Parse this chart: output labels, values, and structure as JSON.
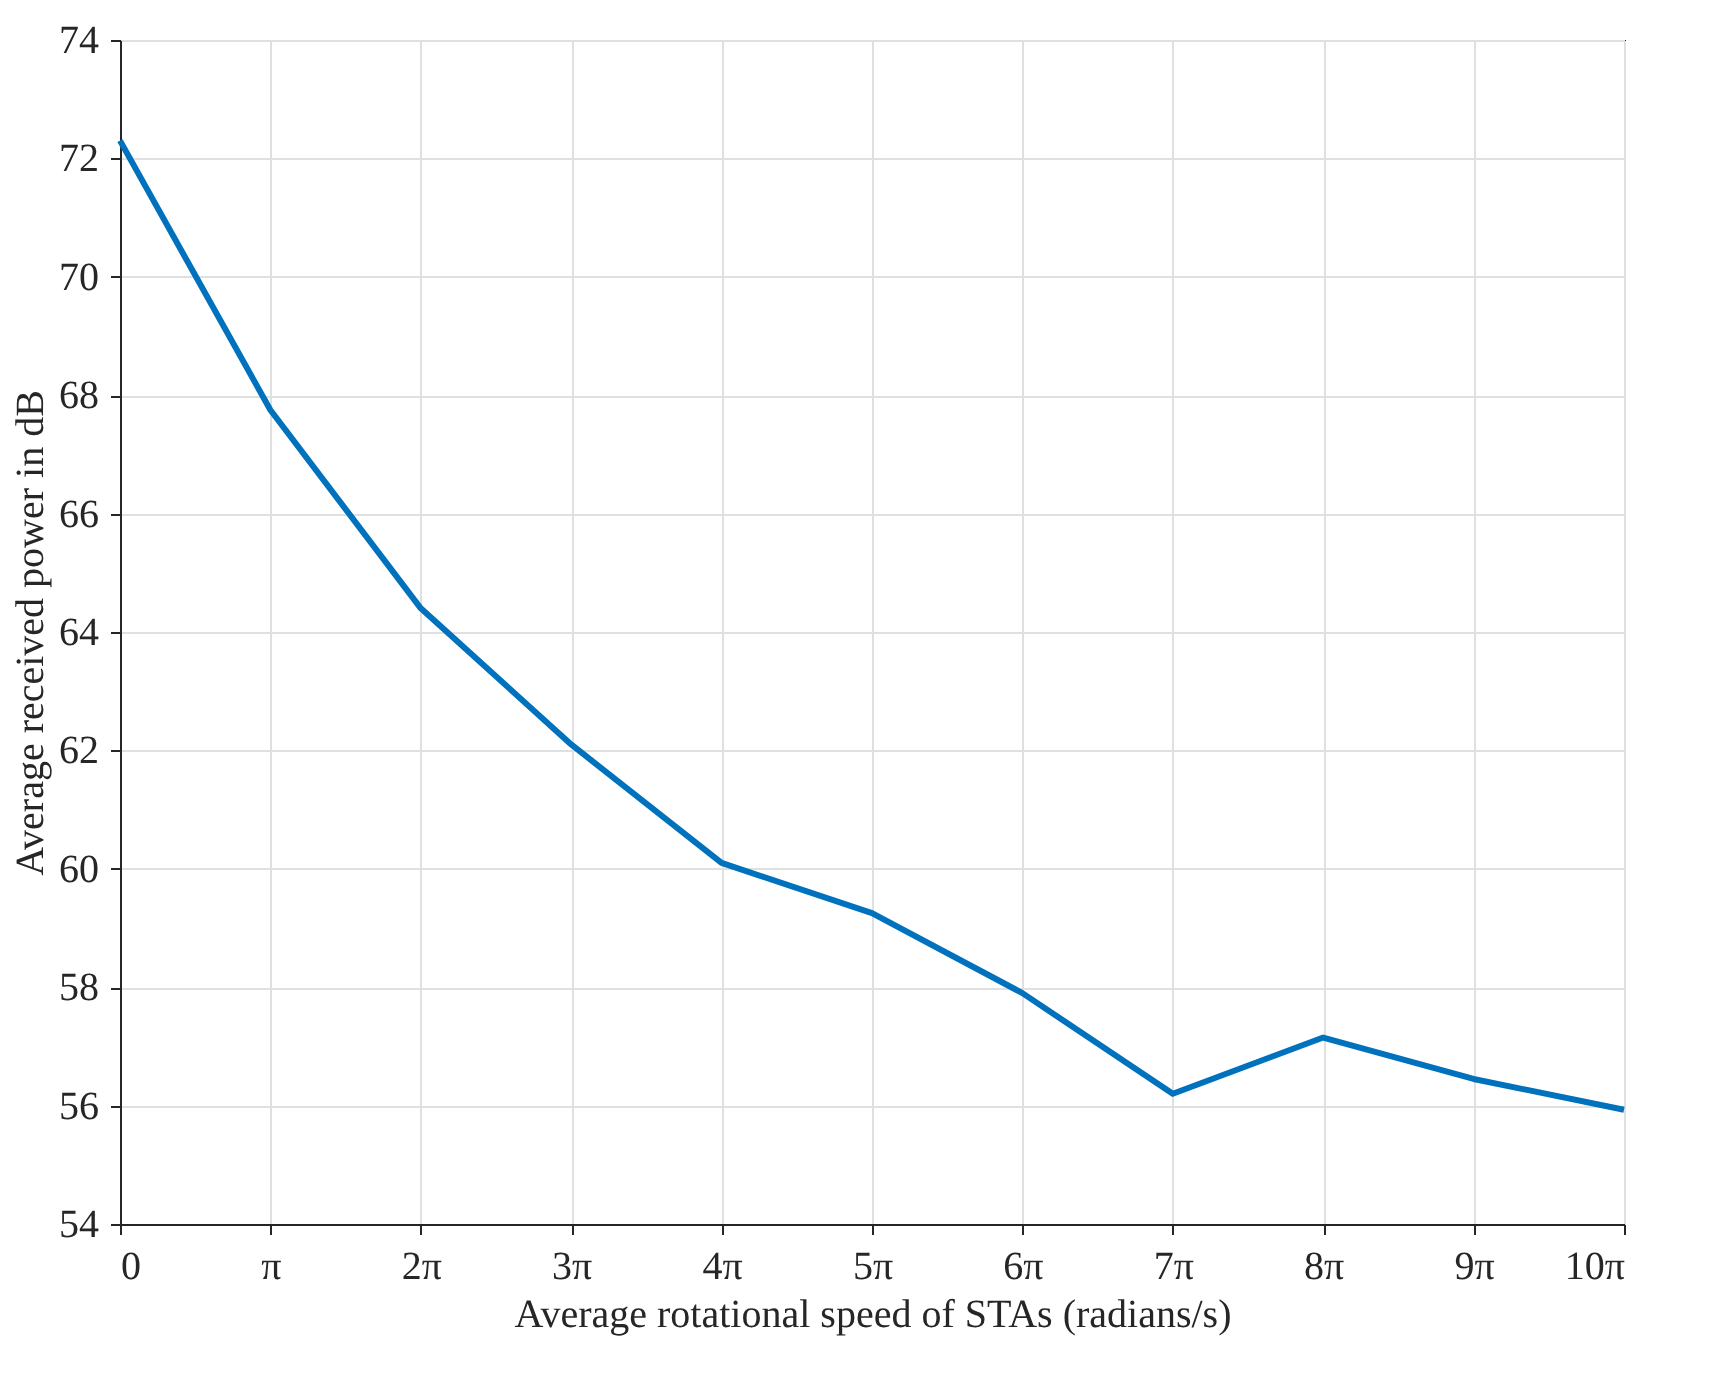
{
  "chart_data": {
    "type": "line",
    "xlabel": "Average rotational speed of STAs (radians/s)",
    "ylabel": "Average received power in dB",
    "x": [
      0,
      3.1416,
      6.2832,
      9.4248,
      12.566,
      15.708,
      18.85,
      21.991,
      25.133,
      28.274,
      31.416
    ],
    "series": [
      {
        "color": "#0072bd",
        "values": [
          72.3,
          67.75,
          64.4,
          62.1,
          60.1,
          59.25,
          57.9,
          56.2,
          57.15,
          56.45,
          55.93
        ]
      }
    ],
    "xlim": [
      0,
      31.416
    ],
    "xticks": [
      0,
      {
        "value": 3.1416,
        "label": "π"
      },
      {
        "value": 6.2832,
        "label": "2π"
      },
      {
        "value": 9.4248,
        "label": "3π"
      },
      {
        "value": 12.566,
        "label": "4π"
      },
      {
        "value": 15.708,
        "label": "5π"
      },
      {
        "value": 18.85,
        "label": "6π"
      },
      {
        "value": 21.991,
        "label": "7π"
      },
      {
        "value": 25.133,
        "label": "8π"
      },
      {
        "value": 28.274,
        "label": "9π"
      },
      {
        "value": 31.416,
        "label": "10π"
      }
    ],
    "ylim": [
      54,
      74
    ],
    "yticks": [
      54,
      56,
      58,
      60,
      62,
      64,
      66,
      68,
      70,
      72,
      74
    ],
    "grid": true,
    "line_style": "solid",
    "marker": "none"
  }
}
